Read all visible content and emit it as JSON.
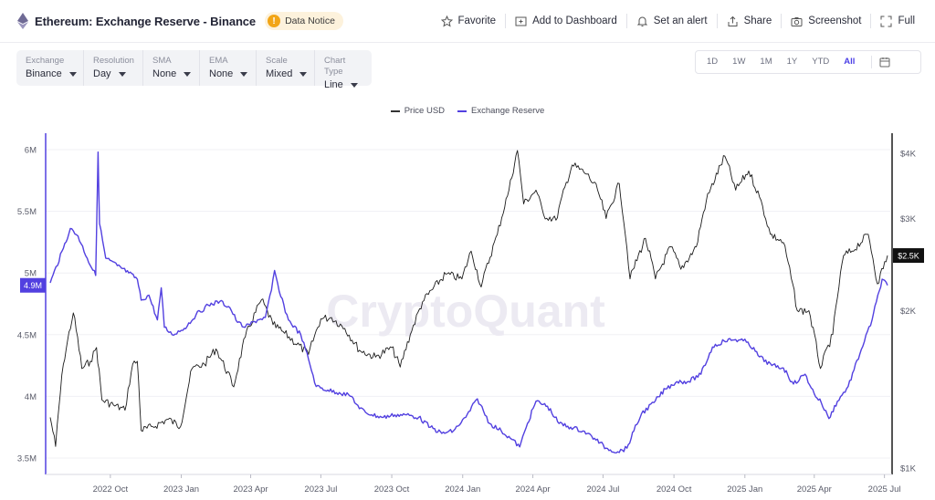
{
  "header": {
    "title": "Ethereum: Exchange Reserve - Binance",
    "notice_label": "Data Notice",
    "notice_glyph": "!",
    "actions": [
      "Favorite",
      "Add to Dashboard",
      "Set an alert",
      "Share",
      "Screenshot",
      "Full"
    ]
  },
  "controls": [
    {
      "label": "Exchange",
      "value": "Binance"
    },
    {
      "label": "Resolution",
      "value": "Day"
    },
    {
      "label": "SMA",
      "value": "None"
    },
    {
      "label": "EMA",
      "value": "None"
    },
    {
      "label": "Scale",
      "value": "Mixed"
    },
    {
      "label": "Chart Type",
      "value": "Line"
    }
  ],
  "range_buttons": [
    "1D",
    "1W",
    "1M",
    "1Y",
    "YTD",
    "All"
  ],
  "range_active": "All",
  "watermark": "CryptoQuant",
  "colors": {
    "reserve": "#5240e0",
    "price": "#1b1b1b",
    "accent": "#4c40e6"
  },
  "chart_data": {
    "type": "line",
    "legend_position": "top-center",
    "legend": [
      "Price USD",
      "Exchange Reserve"
    ],
    "x_ticks": [
      "2022 Oct",
      "2023 Jan",
      "2023 Apr",
      "2023 Jul",
      "2023 Oct",
      "2024 Jan",
      "2024 Apr",
      "2024 Jul",
      "2024 Oct",
      "2025 Jan",
      "2025 Apr",
      "2025 Jul"
    ],
    "left_axis": {
      "ticks": [
        "6M",
        "5.5M",
        "5M",
        "4.5M",
        "4M",
        "3.5M"
      ],
      "ylim": [
        3500000,
        6000000
      ],
      "current_label": "4.9M"
    },
    "right_axis": {
      "scale": "log",
      "ticks": [
        "$4K",
        "$3K",
        "$2K",
        "$1K"
      ],
      "current_label": "$2.5K"
    },
    "x_range": [
      "2022-07-15",
      "2025-07-05"
    ],
    "grid": "horizontal",
    "series": [
      {
        "name": "Exchange Reserve",
        "axis": "left",
        "points": [
          [
            "2022-07-15",
            4.92
          ],
          [
            "2022-08-01",
            5.2
          ],
          [
            "2022-08-10",
            5.36
          ],
          [
            "2022-08-20",
            5.3
          ],
          [
            "2022-09-01",
            5.12
          ],
          [
            "2022-09-12",
            4.98
          ],
          [
            "2022-09-15",
            5.98
          ],
          [
            "2022-09-17",
            5.4
          ],
          [
            "2022-09-25",
            5.12
          ],
          [
            "2022-10-10",
            5.06
          ],
          [
            "2022-10-25",
            5.0
          ],
          [
            "2022-11-05",
            4.95
          ],
          [
            "2022-11-10",
            4.78
          ],
          [
            "2022-11-20",
            4.82
          ],
          [
            "2022-12-01",
            4.62
          ],
          [
            "2022-12-06",
            4.88
          ],
          [
            "2022-12-10",
            4.56
          ],
          [
            "2022-12-20",
            4.5
          ],
          [
            "2023-01-05",
            4.55
          ],
          [
            "2023-01-20",
            4.66
          ],
          [
            "2023-02-05",
            4.74
          ],
          [
            "2023-02-20",
            4.77
          ],
          [
            "2023-03-05",
            4.72
          ],
          [
            "2023-03-15",
            4.6
          ],
          [
            "2023-03-25",
            4.56
          ],
          [
            "2023-04-10",
            4.62
          ],
          [
            "2023-04-20",
            4.64
          ],
          [
            "2023-04-28",
            4.86
          ],
          [
            "2023-05-02",
            5.02
          ],
          [
            "2023-05-08",
            4.85
          ],
          [
            "2023-05-20",
            4.62
          ],
          [
            "2023-06-05",
            4.5
          ],
          [
            "2023-06-15",
            4.3
          ],
          [
            "2023-06-25",
            4.08
          ],
          [
            "2023-07-10",
            4.05
          ],
          [
            "2023-07-25",
            4.03
          ],
          [
            "2023-08-10",
            4.0
          ],
          [
            "2023-08-20",
            3.9
          ],
          [
            "2023-09-05",
            3.85
          ],
          [
            "2023-09-20",
            3.83
          ],
          [
            "2023-10-05",
            3.85
          ],
          [
            "2023-10-20",
            3.85
          ],
          [
            "2023-11-05",
            3.83
          ],
          [
            "2023-11-20",
            3.75
          ],
          [
            "2023-12-05",
            3.7
          ],
          [
            "2023-12-20",
            3.72
          ],
          [
            "2024-01-05",
            3.83
          ],
          [
            "2024-01-20",
            3.98
          ],
          [
            "2024-02-05",
            3.78
          ],
          [
            "2024-02-20",
            3.72
          ],
          [
            "2024-03-05",
            3.65
          ],
          [
            "2024-03-15",
            3.59
          ],
          [
            "2024-03-25",
            3.78
          ],
          [
            "2024-04-05",
            3.96
          ],
          [
            "2024-04-20",
            3.92
          ],
          [
            "2024-05-05",
            3.78
          ],
          [
            "2024-05-20",
            3.75
          ],
          [
            "2024-06-05",
            3.72
          ],
          [
            "2024-06-20",
            3.66
          ],
          [
            "2024-07-05",
            3.58
          ],
          [
            "2024-07-20",
            3.55
          ],
          [
            "2024-08-01",
            3.58
          ],
          [
            "2024-08-10",
            3.72
          ],
          [
            "2024-08-20",
            3.86
          ],
          [
            "2024-09-05",
            3.95
          ],
          [
            "2024-09-20",
            4.06
          ],
          [
            "2024-10-05",
            4.12
          ],
          [
            "2024-10-20",
            4.12
          ],
          [
            "2024-11-05",
            4.18
          ],
          [
            "2024-11-20",
            4.4
          ],
          [
            "2024-12-05",
            4.45
          ],
          [
            "2024-12-20",
            4.46
          ],
          [
            "2025-01-05",
            4.44
          ],
          [
            "2025-01-20",
            4.32
          ],
          [
            "2025-02-05",
            4.25
          ],
          [
            "2025-02-20",
            4.23
          ],
          [
            "2025-03-05",
            4.1
          ],
          [
            "2025-03-20",
            4.18
          ],
          [
            "2025-04-01",
            4.02
          ],
          [
            "2025-04-10",
            3.95
          ],
          [
            "2025-04-20",
            3.82
          ],
          [
            "2025-05-01",
            3.96
          ],
          [
            "2025-05-15",
            4.08
          ],
          [
            "2025-06-01",
            4.38
          ],
          [
            "2025-06-15",
            4.62
          ],
          [
            "2025-06-28",
            4.95
          ],
          [
            "2025-07-05",
            4.9
          ]
        ]
      },
      {
        "name": "Price USD",
        "axis": "right",
        "points": [
          [
            "2022-07-15",
            1250
          ],
          [
            "2022-07-22",
            1100
          ],
          [
            "2022-08-01",
            1580
          ],
          [
            "2022-08-14",
            1980
          ],
          [
            "2022-08-25",
            1550
          ],
          [
            "2022-09-05",
            1600
          ],
          [
            "2022-09-13",
            1700
          ],
          [
            "2022-09-20",
            1350
          ],
          [
            "2022-10-05",
            1320
          ],
          [
            "2022-10-20",
            1290
          ],
          [
            "2022-10-30",
            1580
          ],
          [
            "2022-11-05",
            1600
          ],
          [
            "2022-11-10",
            1180
          ],
          [
            "2022-11-25",
            1200
          ],
          [
            "2022-12-15",
            1240
          ],
          [
            "2022-12-31",
            1200
          ],
          [
            "2023-01-15",
            1550
          ],
          [
            "2023-01-31",
            1580
          ],
          [
            "2023-02-15",
            1690
          ],
          [
            "2023-03-10",
            1430
          ],
          [
            "2023-03-25",
            1780
          ],
          [
            "2023-04-15",
            2100
          ],
          [
            "2023-04-30",
            1880
          ],
          [
            "2023-05-15",
            1810
          ],
          [
            "2023-06-15",
            1650
          ],
          [
            "2023-07-01",
            1930
          ],
          [
            "2023-07-15",
            1940
          ],
          [
            "2023-08-01",
            1850
          ],
          [
            "2023-08-20",
            1680
          ],
          [
            "2023-09-10",
            1630
          ],
          [
            "2023-10-01",
            1700
          ],
          [
            "2023-10-12",
            1560
          ],
          [
            "2023-10-25",
            1800
          ],
          [
            "2023-11-10",
            2080
          ],
          [
            "2023-12-10",
            2350
          ],
          [
            "2023-12-31",
            2300
          ],
          [
            "2024-01-12",
            2600
          ],
          [
            "2024-01-25",
            2220
          ],
          [
            "2024-02-15",
            2800
          ],
          [
            "2024-03-01",
            3400
          ],
          [
            "2024-03-12",
            4050
          ],
          [
            "2024-03-20",
            3200
          ],
          [
            "2024-04-05",
            3400
          ],
          [
            "2024-04-15",
            3050
          ],
          [
            "2024-05-01",
            2980
          ],
          [
            "2024-05-22",
            3800
          ],
          [
            "2024-06-10",
            3650
          ],
          [
            "2024-06-24",
            3400
          ],
          [
            "2024-07-05",
            3000
          ],
          [
            "2024-07-22",
            3500
          ],
          [
            "2024-08-05",
            2300
          ],
          [
            "2024-08-25",
            2750
          ],
          [
            "2024-09-07",
            2300
          ],
          [
            "2024-09-27",
            2650
          ],
          [
            "2024-10-10",
            2400
          ],
          [
            "2024-10-30",
            2650
          ],
          [
            "2024-11-12",
            3250
          ],
          [
            "2024-12-06",
            3950
          ],
          [
            "2024-12-20",
            3400
          ],
          [
            "2025-01-06",
            3700
          ],
          [
            "2025-01-20",
            3300
          ],
          [
            "2025-02-03",
            2800
          ],
          [
            "2025-02-20",
            2700
          ],
          [
            "2025-03-10",
            2000
          ],
          [
            "2025-03-25",
            2000
          ],
          [
            "2025-04-09",
            1550
          ],
          [
            "2025-04-25",
            1800
          ],
          [
            "2025-05-09",
            2550
          ],
          [
            "2025-05-20",
            2600
          ],
          [
            "2025-06-10",
            2800
          ],
          [
            "2025-06-22",
            2250
          ],
          [
            "2025-07-05",
            2550
          ]
        ]
      }
    ]
  }
}
